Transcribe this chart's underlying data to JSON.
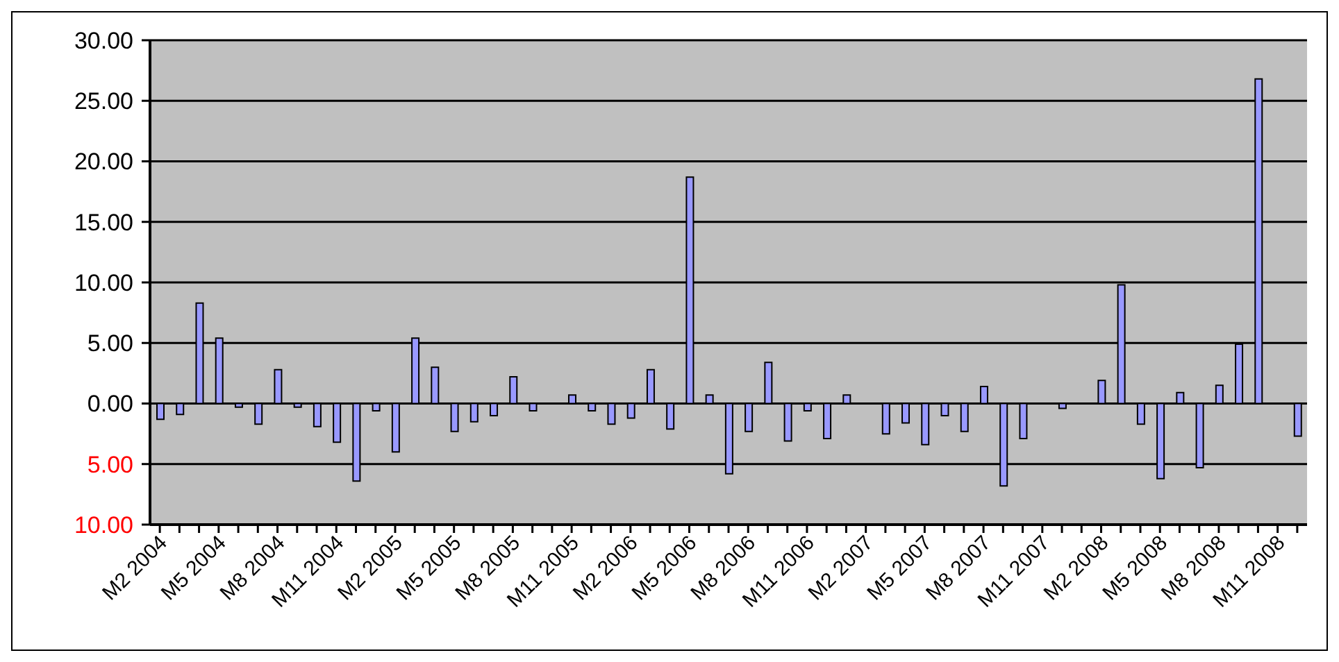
{
  "chart_data": {
    "type": "bar",
    "categories": [
      "M2 2004",
      null,
      null,
      "M5 2004",
      null,
      null,
      "M8 2004",
      null,
      null,
      "M11 2004",
      null,
      null,
      "M2 2005",
      null,
      null,
      "M5 2005",
      null,
      null,
      "M8 2005",
      null,
      null,
      "M11 2005",
      null,
      null,
      "M2 2006",
      null,
      null,
      "M5 2006",
      null,
      null,
      "M8 2006",
      null,
      null,
      "M11 2006",
      null,
      null,
      "M2 2007",
      null,
      null,
      "M5 2007",
      null,
      null,
      "M8 2007",
      null,
      null,
      "M11 2007",
      null,
      null,
      "M2 2008",
      null,
      null,
      "M5 2008",
      null,
      null,
      "M8 2008",
      null,
      null,
      "M11 2008",
      null
    ],
    "values": [
      -1.3,
      -0.9,
      8.3,
      5.4,
      -0.3,
      -1.7,
      2.8,
      -0.3,
      -1.9,
      -3.2,
      -6.4,
      -0.6,
      -4.0,
      5.4,
      3.0,
      -2.3,
      -1.5,
      -1.0,
      2.2,
      -0.6,
      0,
      0.7,
      -0.6,
      -1.7,
      -1.2,
      2.8,
      -2.1,
      18.7,
      0.7,
      -5.8,
      -2.3,
      3.4,
      -3.1,
      -0.6,
      -2.9,
      0.7,
      0,
      -2.5,
      -1.6,
      -3.4,
      -1.0,
      -2.3,
      1.4,
      -6.8,
      -2.9,
      0,
      -0.4,
      0,
      1.9,
      9.8,
      -1.7,
      -6.2,
      0.9,
      -5.3,
      1.5,
      4.9,
      26.8,
      0,
      -2.7
    ],
    "color": "#9999ff",
    "ylim": [
      -10,
      30
    ],
    "yticks": [
      {
        "value": -10,
        "label": "10.00"
      },
      {
        "value": -5,
        "label": "5.00"
      },
      {
        "value": 0,
        "label": "0.00"
      },
      {
        "value": 5,
        "label": "5.00"
      },
      {
        "value": 10,
        "label": "10.00"
      },
      {
        "value": 15,
        "label": "15.00"
      },
      {
        "value": 20,
        "label": "20.00"
      },
      {
        "value": 25,
        "label": "25.00"
      },
      {
        "value": 30,
        "label": "30.00"
      }
    ],
    "grid": "y",
    "legend": false
  }
}
